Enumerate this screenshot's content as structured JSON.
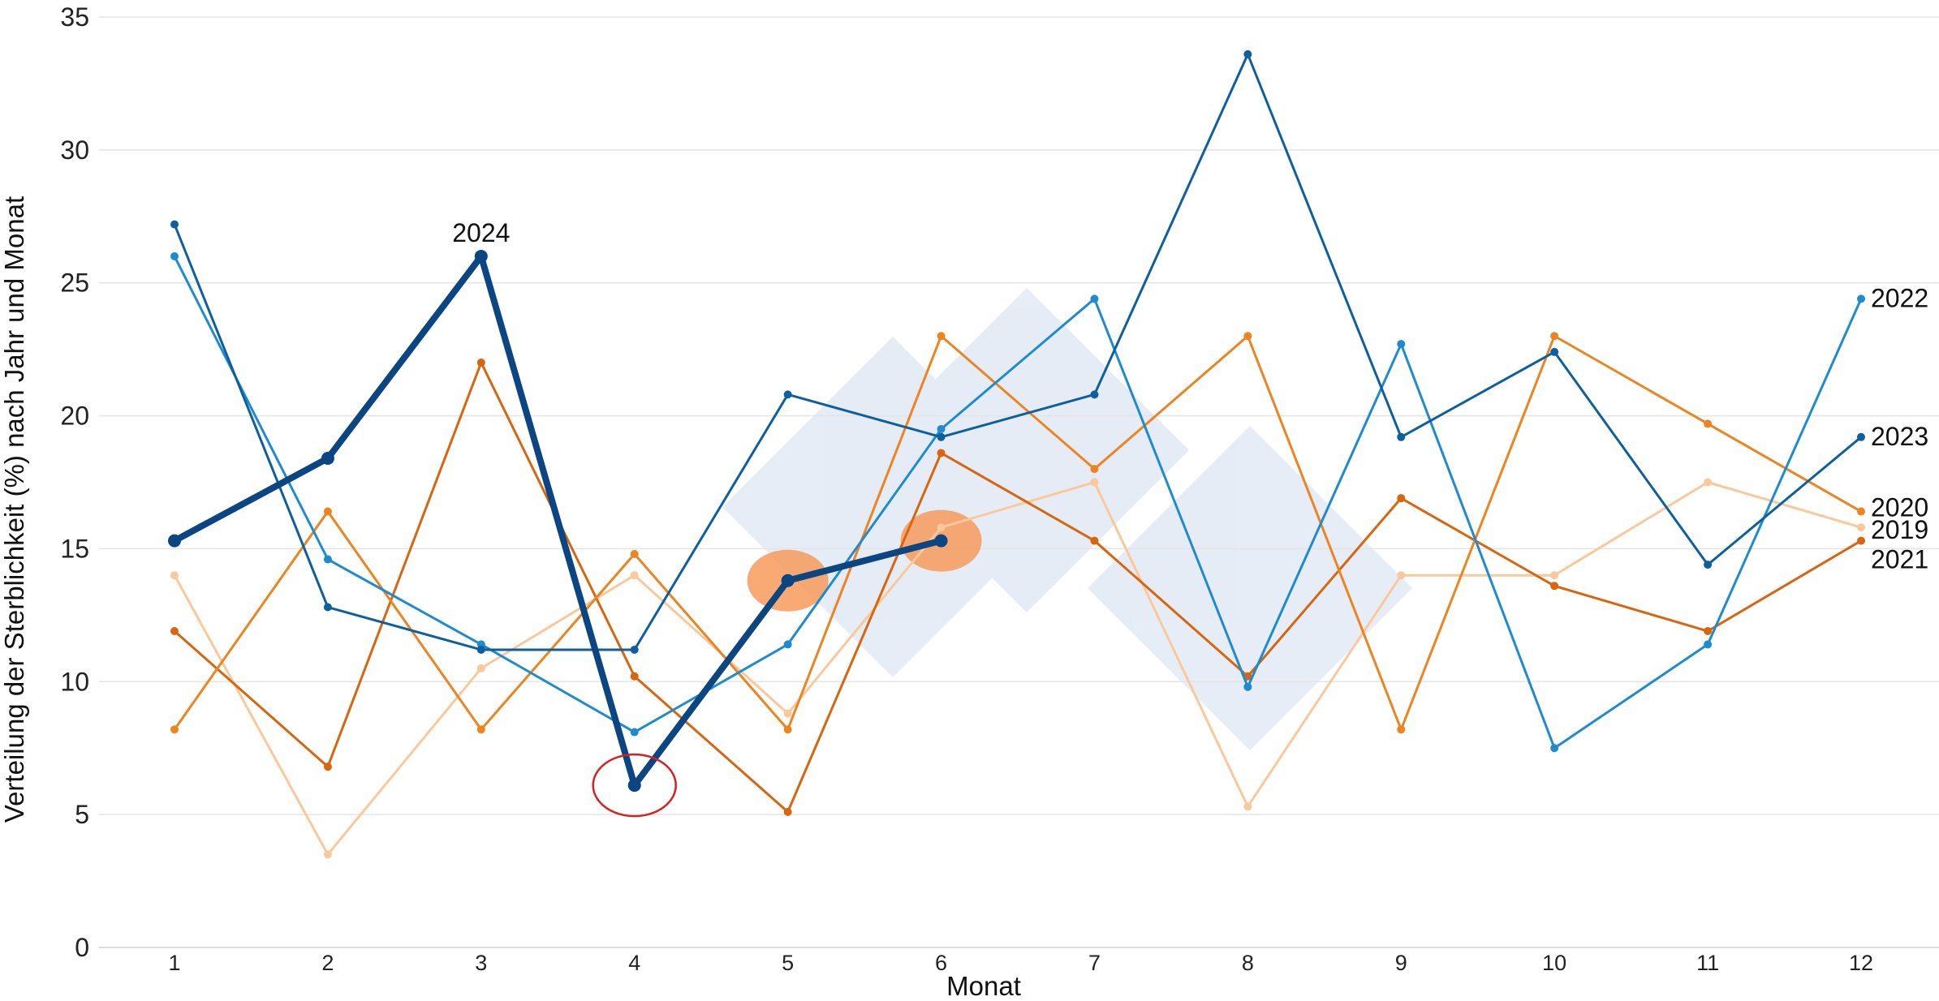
{
  "chart_data": {
    "type": "line",
    "title": "",
    "xlabel": "Monat",
    "ylabel": "Verteilung der Sterblichkeit (%) nach Jahr und Monat",
    "x": [
      1,
      2,
      3,
      4,
      5,
      6,
      7,
      8,
      9,
      10,
      11,
      12
    ],
    "xlim": [
      0.5,
      12.5
    ],
    "ylim": [
      0,
      35
    ],
    "yticks": [
      0,
      5,
      10,
      15,
      20,
      25,
      30,
      35
    ],
    "grid": true,
    "legend": "none",
    "watermark": "3tres3 logo",
    "series": [
      {
        "name": "2019",
        "color": "#F9C99C",
        "width": 3,
        "values": [
          14.0,
          3.5,
          10.5,
          14.0,
          8.8,
          15.8,
          17.5,
          5.3,
          14.0,
          14.0,
          17.5,
          15.8
        ]
      },
      {
        "name": "2021",
        "color": "#D9650F",
        "width": 3,
        "values": [
          11.9,
          6.8,
          22.0,
          10.2,
          5.1,
          18.6,
          15.3,
          10.2,
          16.9,
          13.6,
          11.9,
          15.3
        ]
      },
      {
        "name": "2020",
        "color": "#EE8420",
        "width": 3,
        "values": [
          8.2,
          16.4,
          8.2,
          14.8,
          8.2,
          23.0,
          18.0,
          23.0,
          8.2,
          23.0,
          19.7,
          16.4
        ]
      },
      {
        "name": "2022",
        "color": "#1E8BD0",
        "width": 3,
        "values": [
          26.0,
          14.6,
          11.4,
          8.1,
          11.4,
          19.5,
          24.4,
          9.8,
          22.7,
          7.5,
          11.4,
          24.4
        ]
      },
      {
        "name": "2023",
        "color": "#0E5F9E",
        "width": 3,
        "values": [
          27.2,
          12.8,
          11.2,
          11.2,
          20.8,
          19.2,
          20.8,
          33.6,
          19.2,
          22.4,
          14.4,
          19.2
        ]
      },
      {
        "name": "2024",
        "color": "#0B4582",
        "width": 8,
        "values": [
          15.3,
          18.4,
          26.0,
          6.1,
          13.8,
          15.3,
          null,
          null,
          null,
          null,
          null,
          null
        ]
      }
    ],
    "annotations": [
      {
        "type": "circle",
        "x": 4,
        "y": 6.1,
        "color": "#D92020"
      },
      {
        "type": "highlight",
        "x": 5,
        "y": 13.8,
        "color": "#F79A5C"
      },
      {
        "type": "highlight",
        "x": 6,
        "y": 15.3,
        "color": "#F79A5C"
      }
    ]
  }
}
